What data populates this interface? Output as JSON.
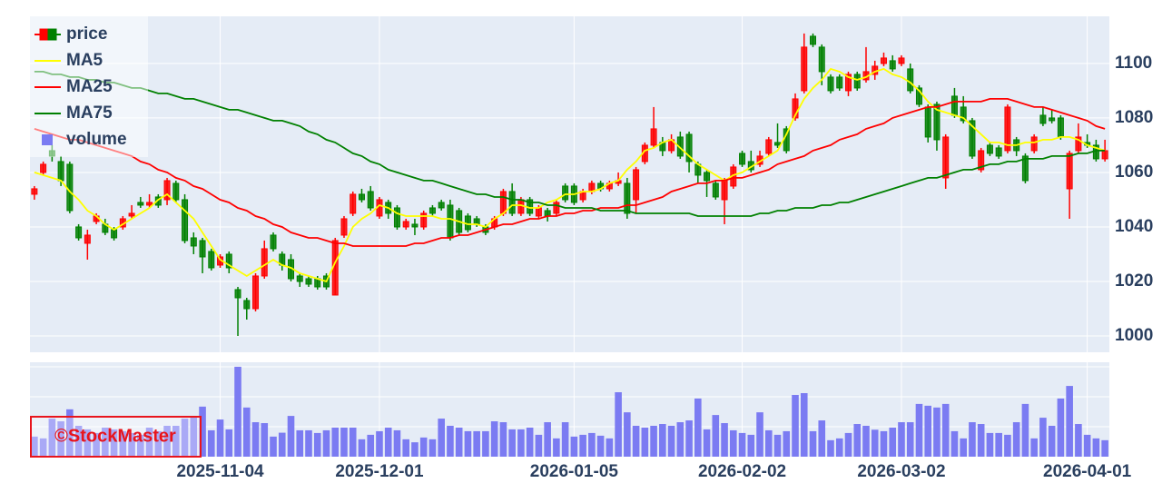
{
  "chart_data": {
    "type": "candlestick",
    "categories": [
      null,
      null,
      null,
      null,
      null,
      null,
      null,
      null,
      null,
      null,
      null,
      null,
      null,
      null,
      null,
      null,
      null,
      null,
      null,
      null,
      null,
      "2025-11-04",
      null,
      null,
      null,
      null,
      null,
      null,
      null,
      null,
      null,
      null,
      null,
      null,
      null,
      null,
      null,
      null,
      null,
      "2025-12-01",
      null,
      null,
      null,
      null,
      null,
      null,
      null,
      null,
      null,
      null,
      null,
      null,
      null,
      null,
      null,
      null,
      null,
      null,
      null,
      null,
      null,
      "2026-01-05",
      null,
      null,
      null,
      null,
      null,
      null,
      null,
      null,
      null,
      null,
      null,
      null,
      null,
      null,
      null,
      null,
      null,
      null,
      "2026-02-02",
      null,
      null,
      null,
      null,
      null,
      null,
      null,
      null,
      null,
      null,
      null,
      null,
      null,
      null,
      null,
      null,
      null,
      "2026-03-02",
      null,
      null,
      null,
      null,
      null,
      null,
      null,
      null,
      null,
      null,
      null,
      null,
      null,
      null,
      null,
      null,
      null,
      null,
      null,
      null,
      "2026-04-01",
      null,
      null
    ],
    "series": [
      {
        "name": "price",
        "type": "candlestick",
        "increasing_color": "#ff0000",
        "decreasing_color": "#008000",
        "open": [
          1052,
          1060,
          1068,
          1064,
          1063,
          1040,
          1034,
          1042,
          1041,
          1039,
          1040,
          1044,
          1049,
          1048,
          1051,
          1050,
          1056,
          1050,
          1036,
          1035,
          1031,
          1026,
          1030,
          1017,
          1013,
          1010,
          1022,
          1037,
          1030,
          1028,
          1022,
          1021,
          1021,
          1022,
          1015,
          1037,
          1045,
          1052,
          1053,
          1044,
          1049,
          1047,
          1040,
          1041,
          1040,
          1047,
          1049,
          1048,
          1046,
          1044,
          1043,
          1040,
          1040,
          1045,
          1053,
          1045,
          1050,
          1044,
          1046,
          1045,
          1055,
          1055,
          1050,
          1053,
          1056,
          1054,
          1056,
          1056,
          1050,
          1064,
          1070,
          1071,
          1068,
          1073,
          1074,
          1063,
          1060,
          1056,
          1050,
          1055,
          1067,
          1064,
          1063,
          1067,
          1071,
          1076,
          1080,
          1090,
          1110,
          1106,
          1095,
          1095,
          1090,
          1096,
          1094,
          1096,
          1100,
          1101,
          1100,
          1098,
          1091,
          1084,
          1085,
          1058,
          1088,
          1084,
          1079,
          1061,
          1070,
          1069,
          1068,
          1072,
          1066,
          1068,
          1081,
          1080,
          1080,
          1054,
          1068,
          1071,
          1070,
          1065
        ],
        "high": [
          1055,
          1064,
          1070,
          1066,
          1064,
          1041,
          1039,
          1045,
          1043,
          1040,
          1044,
          1048,
          1051,
          1052,
          1052,
          1058,
          1057,
          1052,
          1038,
          1036,
          1032,
          1030,
          1031,
          1018,
          1014,
          1023,
          1035,
          1038,
          1031,
          1030,
          1023,
          1022,
          1022,
          1023,
          1036,
          1044,
          1053,
          1054,
          1055,
          1051,
          1050,
          1048,
          1043,
          1043,
          1046,
          1048,
          1050,
          1050,
          1047,
          1045,
          1044,
          1041,
          1044,
          1054,
          1056,
          1051,
          1051,
          1048,
          1047,
          1050,
          1056,
          1056,
          1054,
          1057,
          1057,
          1057,
          1060,
          1058,
          1062,
          1071,
          1084,
          1073,
          1074,
          1075,
          1075,
          1064,
          1061,
          1057,
          1058,
          1063,
          1068,
          1068,
          1068,
          1073,
          1078,
          1077,
          1089,
          1111,
          1111,
          1107,
          1096,
          1096,
          1097,
          1097,
          1106,
          1101,
          1104,
          1103,
          1103,
          1100,
          1092,
          1085,
          1086,
          1074,
          1091,
          1088,
          1080,
          1069,
          1071,
          1070,
          1085,
          1073,
          1067,
          1074,
          1084,
          1083,
          1081,
          1068,
          1078,
          1074,
          1072,
          1072
        ],
        "low": [
          1050,
          1059,
          1064,
          1055,
          1045,
          1035,
          1028,
          1041,
          1037,
          1035,
          1039,
          1043,
          1047,
          1047,
          1047,
          1048,
          1049,
          1034,
          1030,
          1023,
          1024,
          1025,
          1023,
          1000,
          1006,
          1009,
          1021,
          1031,
          1024,
          1020,
          1018,
          1018,
          1017,
          1017,
          1015,
          1036,
          1044,
          1049,
          1046,
          1043,
          1043,
          1039,
          1039,
          1037,
          1039,
          1044,
          1046,
          1035,
          1037,
          1038,
          1040,
          1037,
          1039,
          1044,
          1044,
          1044,
          1044,
          1043,
          1042,
          1044,
          1049,
          1048,
          1049,
          1052,
          1053,
          1053,
          1055,
          1043,
          1045,
          1063,
          1069,
          1066,
          1067,
          1065,
          1060,
          1056,
          1051,
          1050,
          1041,
          1054,
          1062,
          1060,
          1062,
          1066,
          1069,
          1067,
          1079,
          1089,
          1106,
          1092,
          1089,
          1090,
          1088,
          1090,
          1093,
          1094,
          1099,
          1097,
          1099,
          1089,
          1084,
          1071,
          1068,
          1054,
          1080,
          1078,
          1065,
          1060,
          1066,
          1065,
          1067,
          1066,
          1056,
          1067,
          1077,
          1078,
          1072,
          1043,
          1067,
          1069,
          1064,
          1064
        ],
        "close": [
          1054,
          1063,
          1066,
          1057,
          1046,
          1036,
          1037,
          1044,
          1038,
          1036,
          1043,
          1045,
          1048,
          1049,
          1048,
          1057,
          1050,
          1035,
          1033,
          1029,
          1025,
          1029,
          1025,
          1014,
          1010,
          1022,
          1032,
          1032,
          1026,
          1021,
          1020,
          1019,
          1018,
          1018,
          1035,
          1043,
          1052,
          1050,
          1047,
          1050,
          1045,
          1040,
          1042,
          1040,
          1045,
          1045,
          1047,
          1036,
          1038,
          1039,
          1041,
          1038,
          1043,
          1053,
          1045,
          1050,
          1045,
          1047,
          1044,
          1049,
          1050,
          1049,
          1053,
          1056,
          1054,
          1056,
          1057,
          1045,
          1061,
          1070,
          1076,
          1068,
          1072,
          1066,
          1064,
          1059,
          1057,
          1051,
          1057,
          1062,
          1063,
          1061,
          1066,
          1072,
          1070,
          1068,
          1087,
          1106,
          1107,
          1097,
          1090,
          1091,
          1096,
          1091,
          1097,
          1099,
          1102,
          1098,
          1102,
          1090,
          1085,
          1073,
          1072,
          1073,
          1081,
          1079,
          1066,
          1068,
          1067,
          1066,
          1084,
          1068,
          1057,
          1073,
          1078,
          1079,
          1073,
          1067,
          1073,
          1070,
          1065,
          1068
        ]
      },
      {
        "name": "MA5",
        "type": "line",
        "color": "#ffff00",
        "values": [
          1060,
          1059,
          1058,
          1057,
          1053,
          1050,
          1046,
          1044,
          1041,
          1039,
          1041,
          1043,
          1045,
          1047,
          1050,
          1052,
          1049,
          1046,
          1043,
          1038,
          1033,
          1028,
          1026,
          1024,
          1022,
          1024,
          1026,
          1028,
          1026,
          1025,
          1023,
          1022,
          1021,
          1020,
          1027,
          1033,
          1040,
          1043,
          1045,
          1048,
          1047,
          1045,
          1044,
          1044,
          1044,
          1044,
          1043,
          1043,
          1042,
          1041,
          1041,
          1040,
          1043,
          1045,
          1048,
          1048,
          1047,
          1047,
          1049,
          1050,
          1052,
          1052,
          1053,
          1053,
          1054,
          1056,
          1057,
          1061,
          1064,
          1068,
          1069,
          1071,
          1072,
          1069,
          1066,
          1063,
          1061,
          1059,
          1057,
          1059,
          1060,
          1062,
          1064,
          1066,
          1068,
          1074,
          1081,
          1087,
          1091,
          1094,
          1098,
          1097,
          1095,
          1094,
          1095,
          1097,
          1098,
          1096,
          1095,
          1093,
          1090,
          1086,
          1083,
          1082,
          1081,
          1080,
          1077,
          1074,
          1071,
          1071,
          1070,
          1070,
          1071,
          1071,
          1072,
          1072,
          1073,
          1073,
          1072,
          1070,
          1069,
          1068
        ]
      },
      {
        "name": "MA25",
        "type": "line",
        "color": "#ff0000",
        "values": [
          1076,
          1075,
          1074,
          1073,
          1072,
          1072,
          1071,
          1070,
          1069,
          1068,
          1067,
          1066,
          1064,
          1063,
          1061,
          1060,
          1058,
          1057,
          1055,
          1054,
          1052,
          1050,
          1049,
          1047,
          1046,
          1044,
          1043,
          1041,
          1040,
          1038,
          1037,
          1036,
          1036,
          1035,
          1034,
          1034,
          1033,
          1033,
          1033,
          1033,
          1033,
          1033,
          1033,
          1034,
          1034,
          1035,
          1036,
          1036,
          1037,
          1037,
          1038,
          1039,
          1040,
          1041,
          1041,
          1042,
          1043,
          1043,
          1044,
          1044,
          1045,
          1045,
          1046,
          1046,
          1047,
          1047,
          1047,
          1048,
          1048,
          1049,
          1050,
          1051,
          1053,
          1054,
          1055,
          1056,
          1056,
          1057,
          1057,
          1058,
          1058,
          1059,
          1060,
          1061,
          1063,
          1064,
          1065,
          1066,
          1068,
          1069,
          1070,
          1072,
          1073,
          1074,
          1076,
          1077,
          1078,
          1080,
          1081,
          1082,
          1083,
          1084,
          1084,
          1085,
          1086,
          1086,
          1086,
          1086,
          1087,
          1087,
          1087,
          1086,
          1085,
          1084,
          1084,
          1083,
          1082,
          1081,
          1080,
          1079,
          1077,
          1076
        ]
      },
      {
        "name": "MA75",
        "type": "line",
        "color": "#008000",
        "values": [
          1097,
          1097,
          1096,
          1096,
          1095,
          1095,
          1094,
          1094,
          1093,
          1093,
          1092,
          1091,
          1091,
          1090,
          1089,
          1089,
          1088,
          1087,
          1087,
          1086,
          1085,
          1084,
          1083,
          1083,
          1082,
          1081,
          1080,
          1079,
          1079,
          1078,
          1077,
          1075,
          1074,
          1072,
          1071,
          1069,
          1067,
          1066,
          1064,
          1063,
          1061,
          1060,
          1059,
          1058,
          1057,
          1057,
          1056,
          1055,
          1054,
          1053,
          1052,
          1052,
          1051,
          1051,
          1050,
          1050,
          1049,
          1049,
          1048,
          1048,
          1047,
          1047,
          1047,
          1047,
          1046,
          1046,
          1046,
          1046,
          1045,
          1045,
          1045,
          1045,
          1045,
          1045,
          1045,
          1044,
          1044,
          1044,
          1044,
          1044,
          1044,
          1044,
          1045,
          1045,
          1046,
          1046,
          1047,
          1047,
          1047,
          1048,
          1048,
          1049,
          1049,
          1050,
          1051,
          1052,
          1053,
          1054,
          1055,
          1056,
          1057,
          1058,
          1058,
          1059,
          1060,
          1061,
          1061,
          1062,
          1063,
          1063,
          1064,
          1064,
          1065,
          1065,
          1065,
          1066,
          1066,
          1066,
          1067,
          1067,
          1068,
          1068
        ]
      },
      {
        "name": "volume",
        "type": "bar",
        "axis": "y2",
        "color": "#7b7bf2",
        "values": [
          0.67,
          0.61,
          1.27,
          1.18,
          1.58,
          1.03,
          0.91,
          0.79,
          0.97,
          0.91,
          0.85,
          0.79,
          0.73,
          0.97,
          0.85,
          1.03,
          1.03,
          1.27,
          1.33,
          1.67,
          0.88,
          1.24,
          0.91,
          3.0,
          1.64,
          1.15,
          1.12,
          0.67,
          0.8,
          1.36,
          0.88,
          0.88,
          0.79,
          0.88,
          0.97,
          0.97,
          0.97,
          0.58,
          0.73,
          0.85,
          0.97,
          0.88,
          0.58,
          0.48,
          0.64,
          0.58,
          1.27,
          1.03,
          0.97,
          0.85,
          0.85,
          0.85,
          1.18,
          1.15,
          0.91,
          0.91,
          0.97,
          0.73,
          1.15,
          0.61,
          1.15,
          0.67,
          0.73,
          0.79,
          0.7,
          0.61,
          2.15,
          1.48,
          1.03,
          0.97,
          1.03,
          1.09,
          1.03,
          1.15,
          1.21,
          1.94,
          0.91,
          1.39,
          1.12,
          0.88,
          0.79,
          0.73,
          1.48,
          0.88,
          0.73,
          0.85,
          2.06,
          2.12,
          0.85,
          1.21,
          0.55,
          0.61,
          0.79,
          1.09,
          1.03,
          0.9,
          0.85,
          0.97,
          1.15,
          1.15,
          1.76,
          1.7,
          1.64,
          1.76,
          0.85,
          0.61,
          1.15,
          1.09,
          0.79,
          0.79,
          0.73,
          1.15,
          1.76,
          0.61,
          1.3,
          1.03,
          1.94,
          2.36,
          1.09,
          0.73,
          0.61,
          0.55
        ]
      }
    ],
    "ylim": [
      994,
      1117.3
    ],
    "yticks": [
      1000,
      1020,
      1040,
      1060,
      1080,
      1100
    ],
    "y2lim": [
      0,
      3.15
    ],
    "y2ticks": [
      1,
      2,
      3
    ],
    "grid": true,
    "legend": "top-left",
    "watermark": "©StockMaster"
  }
}
